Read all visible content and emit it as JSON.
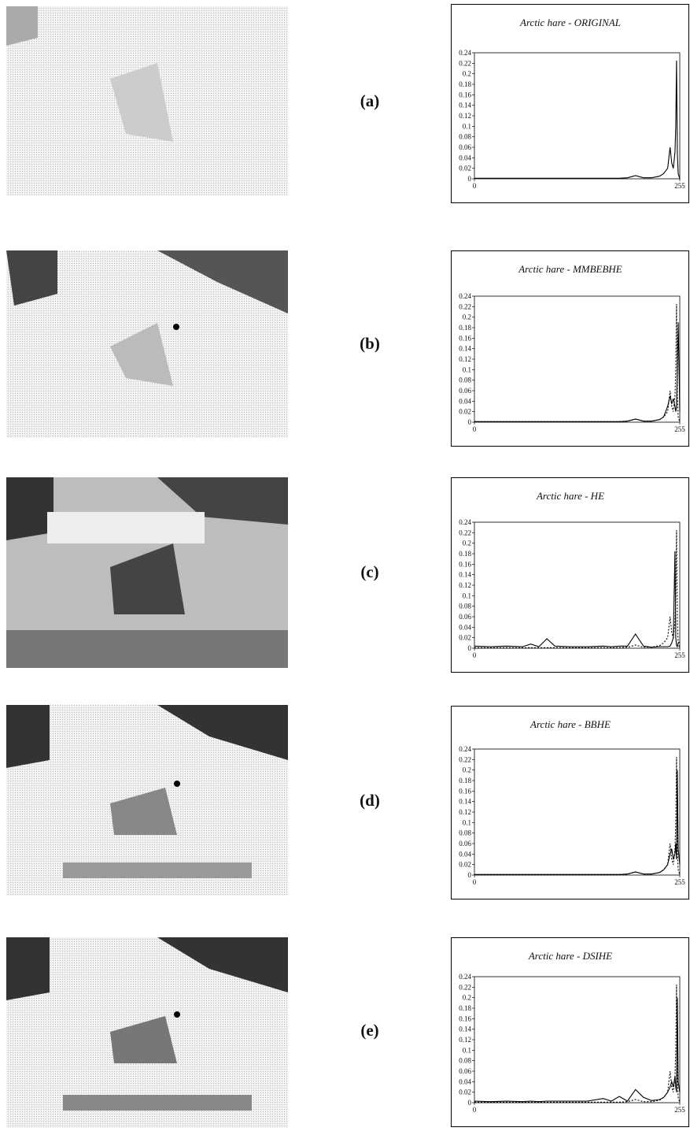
{
  "chart_data": [
    {
      "type": "line",
      "label": "(a)",
      "title": "Arctic hare - ORIGINAL",
      "x": [
        0,
        20,
        40,
        60,
        70,
        80,
        90,
        100,
        120,
        140,
        160,
        170,
        180,
        190,
        200,
        210,
        220,
        230,
        235,
        240,
        243,
        245,
        247,
        249,
        250,
        251,
        252,
        253,
        255
      ],
      "series": [
        {
          "color": "#000",
          "dashed": false,
          "values": [
            0.001,
            0.001,
            0.001,
            0.001,
            0.001,
            0.001,
            0.001,
            0.001,
            0.001,
            0.001,
            0.001,
            0.001,
            0.001,
            0.002,
            0.006,
            0.002,
            0.002,
            0.005,
            0.01,
            0.02,
            0.06,
            0.03,
            0.02,
            0.05,
            0.1,
            0.225,
            0.05,
            0.01,
            0
          ]
        }
      ],
      "xlim": [
        0,
        255
      ],
      "xticks": [
        0,
        255
      ],
      "ylim": [
        0,
        0.24
      ],
      "yticks": [
        0,
        0.02,
        0.04,
        0.06,
        0.08,
        0.1,
        0.12,
        0.14,
        0.16,
        0.18,
        0.2,
        0.22,
        0.24
      ]
    },
    {
      "type": "line",
      "label": "(b)",
      "title": "Arctic hare - MMBEBHE",
      "x": [
        0,
        20,
        40,
        60,
        70,
        80,
        90,
        100,
        120,
        140,
        160,
        170,
        180,
        190,
        200,
        210,
        220,
        230,
        235,
        240,
        243,
        245,
        247,
        249,
        250,
        251,
        252,
        253,
        255
      ],
      "series": [
        {
          "color": "#000",
          "dashed": true,
          "values": [
            0.001,
            0.001,
            0.001,
            0.001,
            0.001,
            0.001,
            0.001,
            0.001,
            0.001,
            0.001,
            0.001,
            0.001,
            0.001,
            0.002,
            0.006,
            0.002,
            0.002,
            0.005,
            0.01,
            0.02,
            0.06,
            0.03,
            0.02,
            0.05,
            0.1,
            0.225,
            0.05,
            0.01,
            0
          ]
        },
        {
          "color": "#000",
          "dashed": false,
          "values": [
            0.001,
            0.001,
            0.001,
            0.001,
            0.001,
            0.001,
            0.001,
            0.001,
            0.001,
            0.001,
            0.001,
            0.001,
            0.001,
            0.002,
            0.006,
            0.002,
            0.002,
            0.005,
            0.01,
            0.03,
            0.05,
            0.035,
            0.045,
            0.03,
            0.02,
            0.03,
            0.1,
            0.19,
            0.02
          ]
        }
      ],
      "xlim": [
        0,
        255
      ],
      "xticks": [
        0,
        255
      ],
      "ylim": [
        0,
        0.24
      ],
      "yticks": [
        0,
        0.02,
        0.04,
        0.06,
        0.08,
        0.1,
        0.12,
        0.14,
        0.16,
        0.18,
        0.2,
        0.22,
        0.24
      ]
    },
    {
      "type": "line",
      "label": "(c)",
      "title": "Arctic hare - HE",
      "x": [
        0,
        20,
        40,
        60,
        70,
        80,
        90,
        100,
        120,
        140,
        160,
        170,
        180,
        190,
        200,
        210,
        220,
        230,
        235,
        240,
        243,
        245,
        247,
        249,
        250,
        251,
        252,
        253,
        255
      ],
      "series": [
        {
          "color": "#000",
          "dashed": true,
          "values": [
            0.001,
            0.001,
            0.001,
            0.001,
            0.001,
            0.001,
            0.001,
            0.001,
            0.001,
            0.001,
            0.001,
            0.001,
            0.001,
            0.002,
            0.006,
            0.002,
            0.002,
            0.005,
            0.01,
            0.02,
            0.06,
            0.03,
            0.02,
            0.05,
            0.1,
            0.225,
            0.05,
            0.01,
            0
          ]
        },
        {
          "color": "#000",
          "dashed": false,
          "values": [
            0.004,
            0.003,
            0.004,
            0.003,
            0.008,
            0.003,
            0.018,
            0.004,
            0.003,
            0.003,
            0.004,
            0.003,
            0.004,
            0.004,
            0.027,
            0.004,
            0.002,
            0.003,
            0.003,
            0.003,
            0.004,
            0.01,
            0.02,
            0.185,
            0.02,
            0.005,
            0.003,
            0.01,
            0.012
          ]
        }
      ],
      "xlim": [
        0,
        255
      ],
      "xticks": [
        0,
        255
      ],
      "ylim": [
        0,
        0.24
      ],
      "yticks": [
        0,
        0.02,
        0.04,
        0.06,
        0.08,
        0.1,
        0.12,
        0.14,
        0.16,
        0.18,
        0.2,
        0.22,
        0.24
      ]
    },
    {
      "type": "line",
      "label": "(d)",
      "title": "Arctic hare - BBHE",
      "x": [
        0,
        20,
        40,
        60,
        70,
        80,
        90,
        100,
        120,
        140,
        160,
        170,
        180,
        190,
        200,
        210,
        220,
        230,
        235,
        240,
        243,
        245,
        247,
        249,
        250,
        251,
        252,
        253,
        255
      ],
      "series": [
        {
          "color": "#000",
          "dashed": true,
          "values": [
            0.001,
            0.001,
            0.001,
            0.001,
            0.001,
            0.001,
            0.001,
            0.001,
            0.001,
            0.001,
            0.001,
            0.001,
            0.001,
            0.002,
            0.006,
            0.002,
            0.002,
            0.005,
            0.01,
            0.02,
            0.06,
            0.03,
            0.02,
            0.05,
            0.1,
            0.225,
            0.05,
            0.01,
            0
          ]
        },
        {
          "color": "#000",
          "dashed": false,
          "values": [
            0.001,
            0.001,
            0.001,
            0.001,
            0.001,
            0.001,
            0.001,
            0.001,
            0.001,
            0.001,
            0.001,
            0.001,
            0.001,
            0.002,
            0.006,
            0.002,
            0.002,
            0.005,
            0.01,
            0.02,
            0.04,
            0.05,
            0.03,
            0.04,
            0.06,
            0.03,
            0.2,
            0.05,
            0.02
          ]
        }
      ],
      "xlim": [
        0,
        255
      ],
      "xticks": [
        0,
        255
      ],
      "ylim": [
        0,
        0.24
      ],
      "yticks": [
        0,
        0.02,
        0.04,
        0.06,
        0.08,
        0.1,
        0.12,
        0.14,
        0.16,
        0.18,
        0.2,
        0.22,
        0.24
      ]
    },
    {
      "type": "line",
      "label": "(e)",
      "title": "Arctic hare - DSIHE",
      "x": [
        0,
        20,
        40,
        60,
        70,
        80,
        90,
        100,
        120,
        140,
        160,
        170,
        180,
        190,
        200,
        210,
        220,
        230,
        235,
        240,
        243,
        245,
        247,
        249,
        250,
        251,
        252,
        253,
        255
      ],
      "series": [
        {
          "color": "#000",
          "dashed": true,
          "values": [
            0.001,
            0.001,
            0.001,
            0.001,
            0.001,
            0.001,
            0.001,
            0.001,
            0.001,
            0.001,
            0.001,
            0.001,
            0.001,
            0.002,
            0.006,
            0.002,
            0.002,
            0.005,
            0.01,
            0.02,
            0.06,
            0.03,
            0.02,
            0.05,
            0.1,
            0.225,
            0.05,
            0.01,
            0
          ]
        },
        {
          "color": "#000",
          "dashed": false,
          "values": [
            0.003,
            0.002,
            0.003,
            0.002,
            0.003,
            0.002,
            0.003,
            0.003,
            0.003,
            0.003,
            0.008,
            0.003,
            0.012,
            0.003,
            0.025,
            0.01,
            0.004,
            0.006,
            0.01,
            0.02,
            0.03,
            0.04,
            0.03,
            0.05,
            0.03,
            0.02,
            0.2,
            0.04,
            0.02
          ]
        }
      ],
      "xlim": [
        0,
        255
      ],
      "xticks": [
        0,
        255
      ],
      "ylim": [
        0,
        0.24
      ],
      "yticks": [
        0,
        0.02,
        0.04,
        0.06,
        0.08,
        0.1,
        0.12,
        0.14,
        0.16,
        0.18,
        0.2,
        0.22,
        0.24
      ]
    }
  ]
}
